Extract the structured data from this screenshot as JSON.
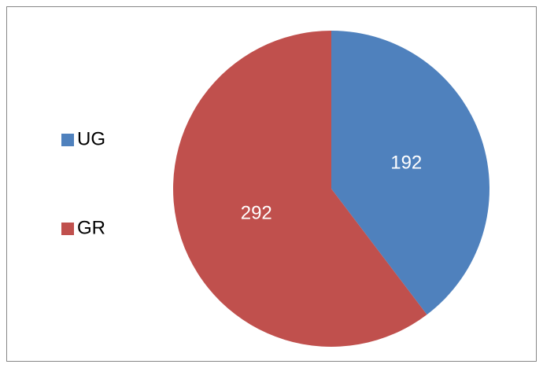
{
  "chart_data": {
    "type": "pie",
    "categories": [
      "UG",
      "GR"
    ],
    "values": [
      192,
      292
    ],
    "colors": [
      "#4f81bd",
      "#c0504d"
    ],
    "legend": "left"
  }
}
